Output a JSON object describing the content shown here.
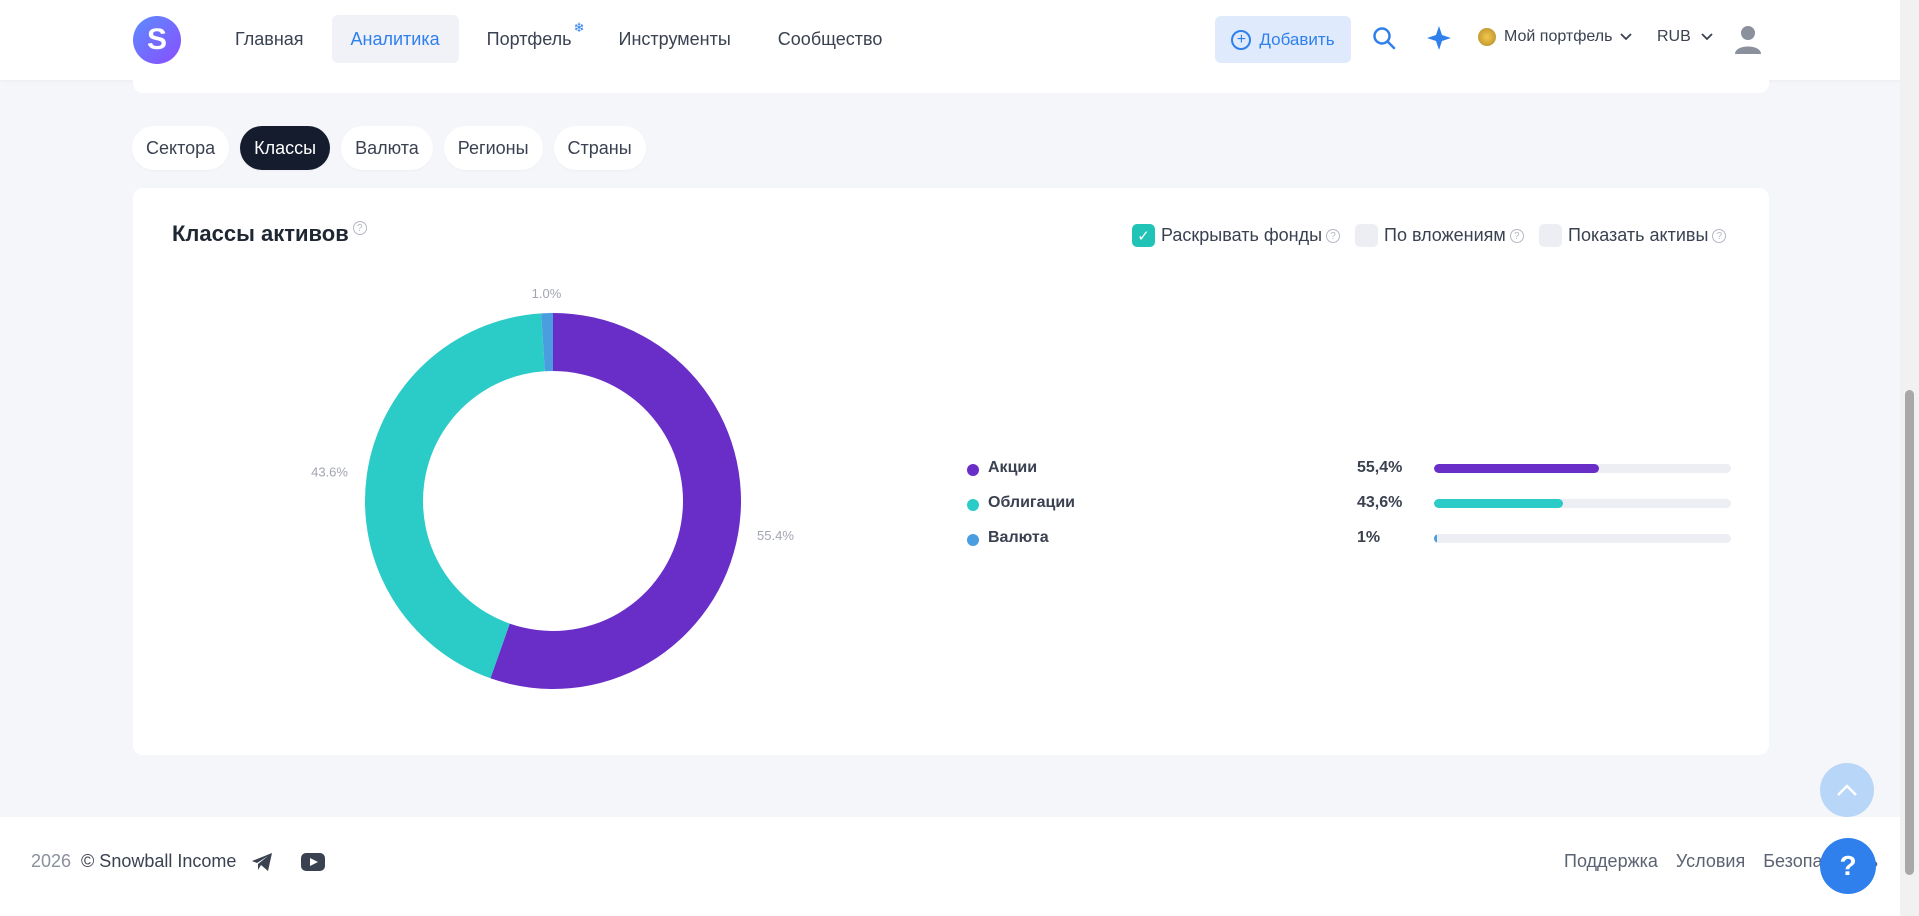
{
  "header": {
    "logo_letter": "S",
    "nav": [
      {
        "label": "Главная",
        "active": false
      },
      {
        "label": "Аналитика",
        "active": true
      },
      {
        "label": "Портфель",
        "active": false,
        "badge": "❄"
      },
      {
        "label": "Инструменты",
        "active": false
      },
      {
        "label": "Сообщество",
        "active": false
      }
    ],
    "add_label": "Добавить",
    "portfolio_label": "Мой портфель",
    "currency_label": "RUB"
  },
  "tabs": [
    {
      "label": "Сектора",
      "active": false
    },
    {
      "label": "Классы",
      "active": true
    },
    {
      "label": "Валюта",
      "active": false
    },
    {
      "label": "Регионы",
      "active": false
    },
    {
      "label": "Страны",
      "active": false
    }
  ],
  "card": {
    "title": "Классы активов",
    "help_glyph": "?",
    "options": [
      {
        "label": "Раскрывать фонды",
        "checked": true
      },
      {
        "label": "По вложениям",
        "checked": false
      },
      {
        "label": "Показать активы",
        "checked": false
      }
    ]
  },
  "chart_data": {
    "type": "pie",
    "donut": true,
    "categories": [
      "Акции",
      "Облигации",
      "Валюта"
    ],
    "values": [
      55.4,
      43.6,
      1.0
    ],
    "slice_labels": [
      "55.4%",
      "43.6%",
      "1.0%"
    ],
    "legend_values": [
      "55,4%",
      "43,6%",
      "1%"
    ],
    "colors": [
      "#6a2ec8",
      "#2bcbc8",
      "#4a9ee0"
    ],
    "legend_placement": "right"
  },
  "footer": {
    "year": "2026",
    "copyright": "© Snowball Income",
    "links": [
      "Поддержка",
      "Условия",
      "Безопасность"
    ]
  },
  "help_fab_label": "?"
}
